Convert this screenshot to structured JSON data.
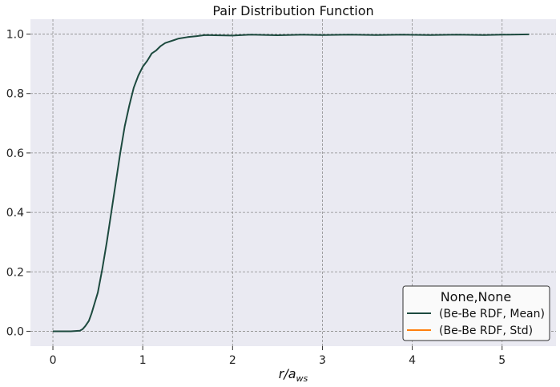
{
  "chart_data": {
    "type": "line",
    "title": "Pair Distribution Function",
    "xlabel_main": "r/a",
    "xlabel_sub": "ws",
    "ylabel": "",
    "xlim": [
      -0.25,
      5.6
    ],
    "ylim": [
      -0.05,
      1.05
    ],
    "xticks": [
      0,
      1,
      2,
      3,
      4,
      5
    ],
    "yticks": [
      0.0,
      0.2,
      0.4,
      0.6,
      0.8,
      1.0
    ],
    "xtick_labels": [
      "0",
      "1",
      "2",
      "3",
      "4",
      "5"
    ],
    "ytick_labels": [
      "0.0",
      "0.2",
      "0.4",
      "0.6",
      "0.8",
      "1.0"
    ],
    "grid": true,
    "legend": {
      "title": "None,None",
      "placement": "lower-right"
    },
    "colors": {
      "background": "#eaeaf2",
      "grid": "#8c8c8c",
      "mean": "#1d4a3f",
      "std": "#ff7f0e"
    },
    "series": [
      {
        "name": "(Be-Be RDF, Mean)",
        "color": "#1d4a3f",
        "x": [
          0,
          0.1,
          0.2,
          0.3,
          0.33,
          0.36,
          0.4,
          0.43,
          0.46,
          0.5,
          0.55,
          0.6,
          0.65,
          0.7,
          0.75,
          0.8,
          0.85,
          0.9,
          0.95,
          1.0,
          1.05,
          1.1,
          1.15,
          1.2,
          1.25,
          1.3,
          1.35,
          1.4,
          1.5,
          1.6,
          1.7,
          1.8,
          2.0,
          2.2,
          2.5,
          2.8,
          3.0,
          3.3,
          3.6,
          3.9,
          4.2,
          4.5,
          4.8,
          5.0,
          5.3
        ],
        "values": [
          0.0,
          0.0,
          0.0,
          0.002,
          0.007,
          0.017,
          0.035,
          0.06,
          0.09,
          0.13,
          0.21,
          0.3,
          0.4,
          0.5,
          0.6,
          0.69,
          0.76,
          0.82,
          0.86,
          0.89,
          0.91,
          0.935,
          0.945,
          0.96,
          0.97,
          0.975,
          0.98,
          0.985,
          0.99,
          0.993,
          0.997,
          0.996,
          0.995,
          0.998,
          0.996,
          0.998,
          0.997,
          0.998,
          0.997,
          0.998,
          0.997,
          0.998,
          0.997,
          0.998,
          0.999
        ]
      },
      {
        "name": "(Be-Be RDF, Std)",
        "color": "#ff7f0e",
        "x": [],
        "values": []
      }
    ]
  }
}
